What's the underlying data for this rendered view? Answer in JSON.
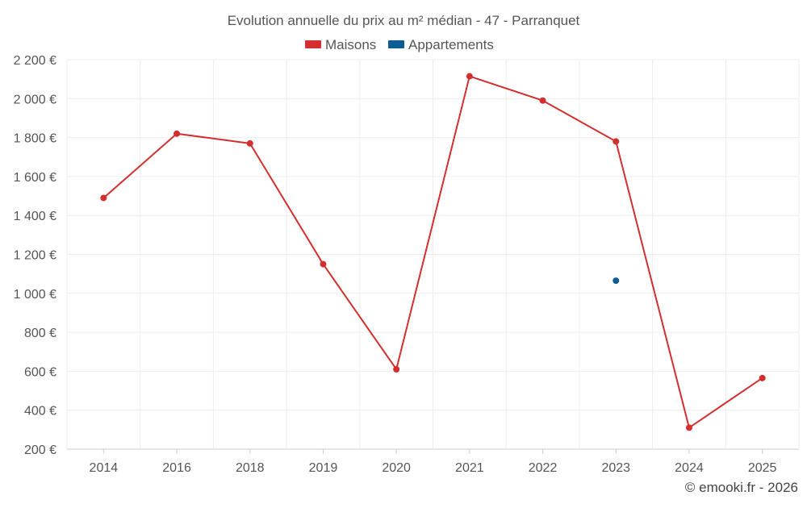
{
  "chart_data": {
    "type": "line",
    "title": "Evolution annuelle du prix au m² médian - 47 - Parranquet",
    "categories": [
      "2014",
      "2016",
      "2018",
      "2019",
      "2020",
      "2021",
      "2022",
      "2023",
      "2024",
      "2025"
    ],
    "series": [
      {
        "name": "Maisons",
        "color": "#d32f2f",
        "values": [
          1490,
          1820,
          1770,
          1150,
          610,
          2115,
          1990,
          1780,
          310,
          565
        ]
      },
      {
        "name": "Appartements",
        "color": "#0b5d94",
        "values": [
          null,
          null,
          null,
          null,
          null,
          null,
          null,
          1065,
          null,
          null
        ]
      }
    ],
    "yticks": [
      "2 200 €",
      "2 000 €",
      "1 800 €",
      "1 600 €",
      "1 400 €",
      "1 200 €",
      "1 000 €",
      "800 €",
      "600 €",
      "400 €",
      "200 €"
    ],
    "ylim": [
      200,
      2200
    ],
    "grid": true,
    "legend_position": "top-center"
  },
  "credit": "© emooki.fr - 2026"
}
